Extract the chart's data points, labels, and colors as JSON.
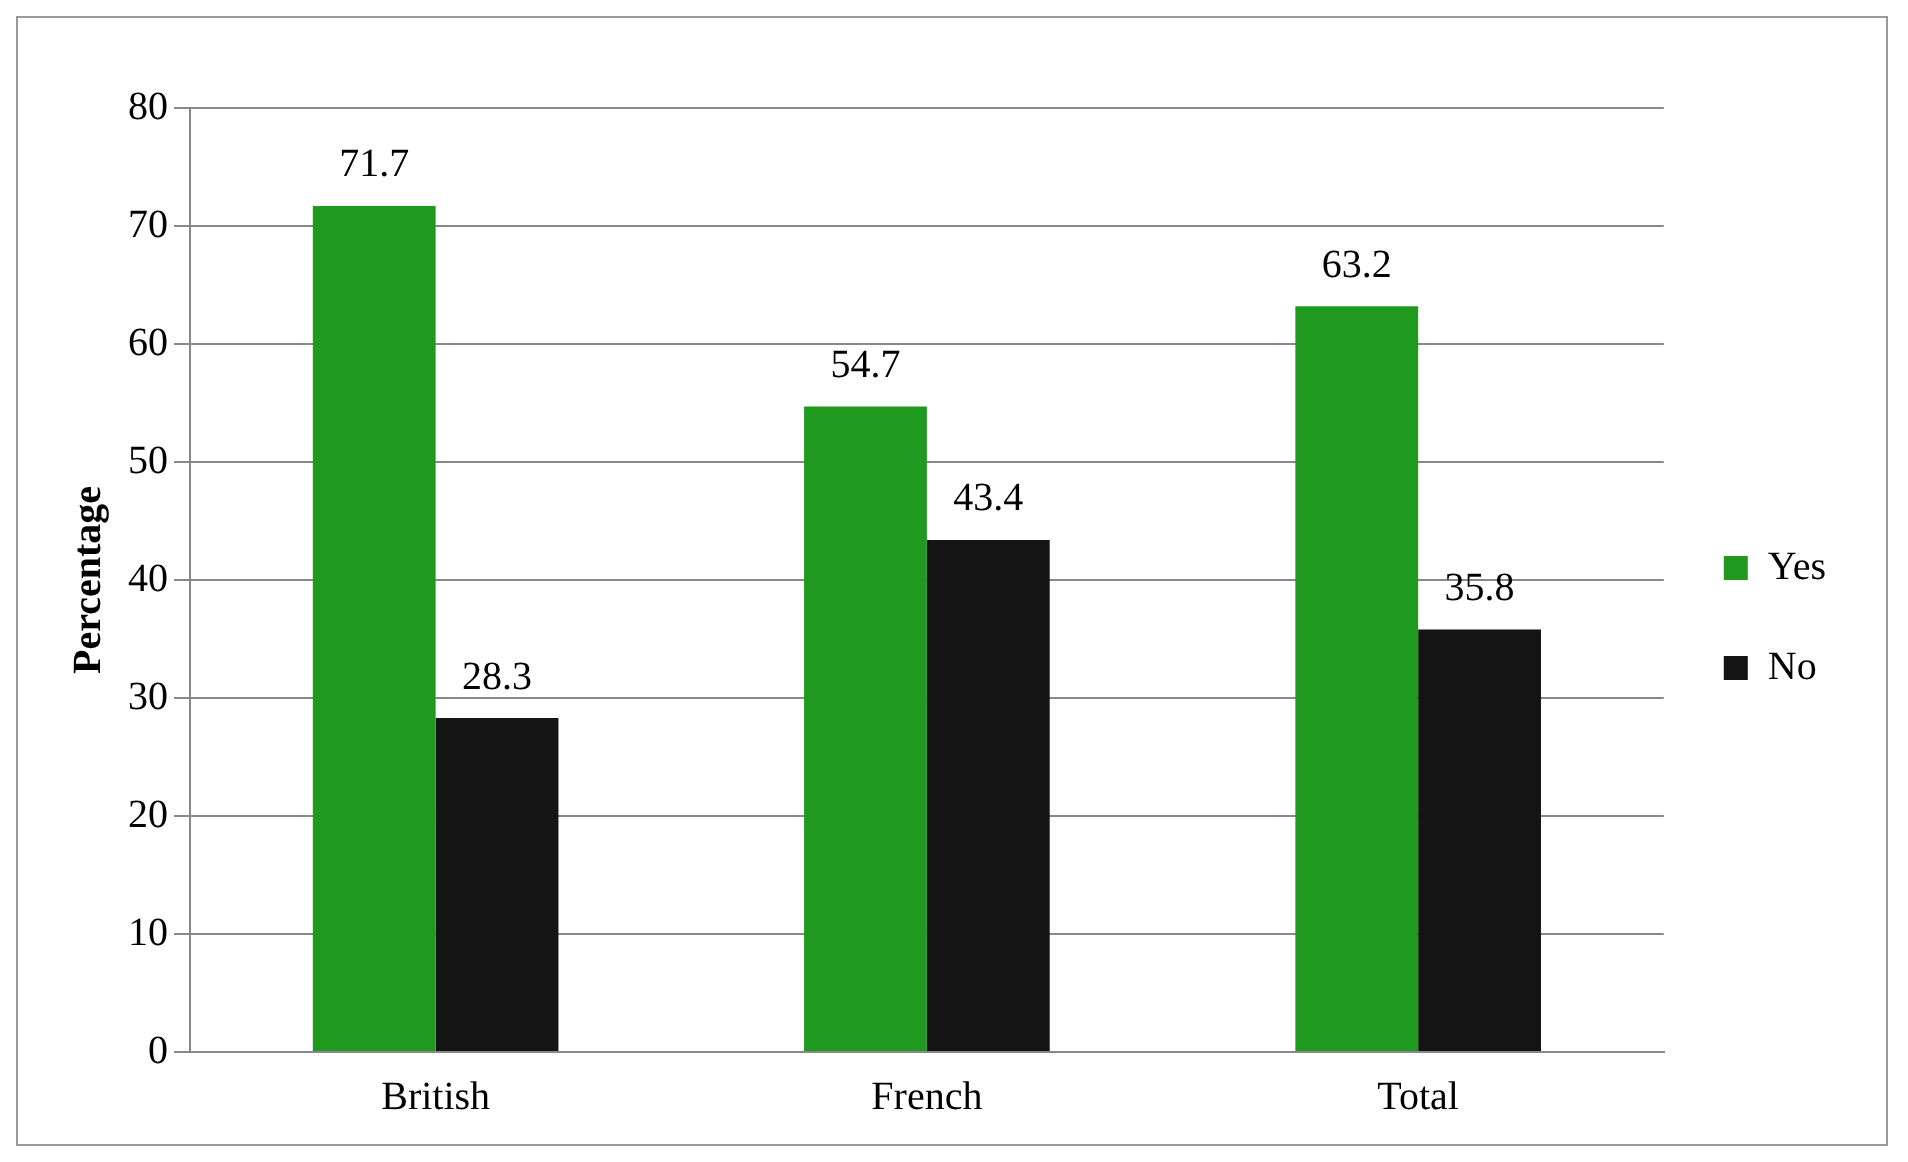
{
  "chart_data": {
    "type": "bar",
    "ylabel": "Percentage",
    "categories": [
      "British",
      "French",
      "Total"
    ],
    "series": [
      {
        "name": "Yes",
        "color": "#1f9a1f",
        "values": [
          71.7,
          54.7,
          63.2
        ]
      },
      {
        "name": "No",
        "color": "#141414",
        "values": [
          28.3,
          43.4,
          35.8
        ]
      }
    ],
    "ylim": [
      0,
      80
    ],
    "yticks": [
      0,
      10,
      20,
      30,
      40,
      50,
      60,
      70,
      80
    ],
    "grid": "y",
    "legend": "right",
    "data_labels": true
  }
}
